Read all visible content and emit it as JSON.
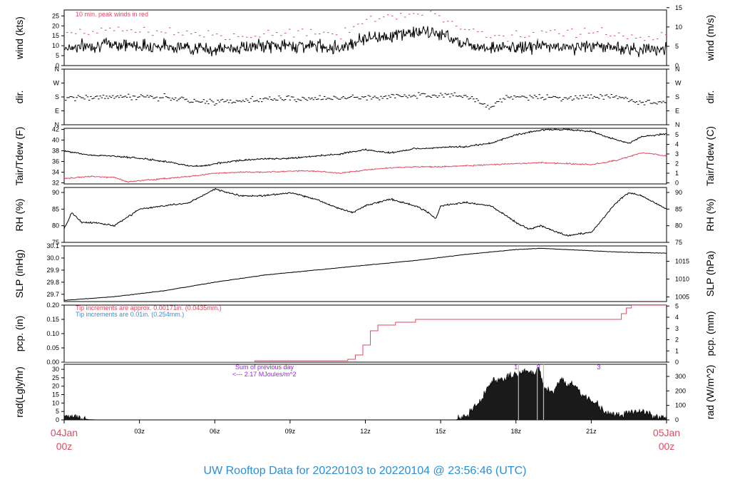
{
  "chart_data": {
    "type": "line",
    "title": "UW Rooftop Data for 20220103  to  20220104 @ 23:56:46  (UTC)",
    "colors": {
      "title": "#2b8fd6",
      "accent_red": "#e04a63",
      "blue_note": "#3a8fd0",
      "purple": "#a020f0",
      "line": "#000000",
      "frame": "#000000"
    },
    "x_axis": {
      "hours_range": [
        0,
        24
      ],
      "ticks": [
        {
          "hour": 0,
          "label": "04Jan",
          "label2": "00z",
          "end": true
        },
        {
          "hour": 3,
          "label": "03z"
        },
        {
          "hour": 6,
          "label": "06z"
        },
        {
          "hour": 9,
          "label": "09z"
        },
        {
          "hour": 12,
          "label": "12z"
        },
        {
          "hour": 15,
          "label": "15z"
        },
        {
          "hour": 18,
          "label": "18z"
        },
        {
          "hour": 21,
          "label": "21z"
        },
        {
          "hour": 24,
          "label": "05Jan",
          "label2": "00z",
          "end": true
        }
      ]
    },
    "panels": [
      {
        "id": "wind",
        "left_label": "wind (kts)",
        "right_label": "wind (m/s)",
        "ylim": [
          0,
          28
        ],
        "yticks": [
          0,
          5,
          10,
          15,
          20,
          25
        ],
        "right_ticks": [
          {
            "v": 0,
            "l": "0"
          },
          {
            "v": 9.72,
            "l": "5"
          },
          {
            "v": 19.44,
            "l": "10"
          },
          {
            "v": 29.16,
            "l": "15"
          }
        ],
        "annotations": [
          {
            "text": "10 min. peak winds in red",
            "color": "#e04a63",
            "pos": "top-left"
          }
        ],
        "series": [
          {
            "color": "#000000",
            "style": "line",
            "hours": [
              0,
              1,
              2,
              3,
              4,
              5,
              6,
              7,
              8,
              9,
              10,
              11,
              12,
              13,
              14,
              15,
              16,
              17,
              18,
              19,
              20,
              21,
              22,
              23,
              24
            ],
            "values": [
              9,
              10,
              11,
              10,
              10,
              9,
              8,
              9,
              10,
              10,
              10,
              9,
              14,
              15,
              17,
              16,
              11,
              9,
              9,
              10,
              9,
              10,
              9,
              8,
              9
            ]
          },
          {
            "name": "10 min. peak winds",
            "color": "#e04a63",
            "style": "dash",
            "hours": [
              0,
              1,
              2,
              3,
              4,
              5,
              6,
              7,
              8,
              9,
              10,
              11,
              12,
              13,
              14,
              15,
              16,
              17,
              18,
              19,
              20,
              21,
              22,
              23,
              24
            ],
            "values": [
              16,
              17,
              18,
              17,
              17,
              15,
              14,
              15,
              16,
              16,
              17,
              16,
              23,
              25,
              27,
              25,
              18,
              15,
              15,
              17,
              15,
              17,
              16,
              14,
              15
            ]
          }
        ]
      },
      {
        "id": "dir",
        "left_label": "dir.",
        "right_label": "dir.",
        "ylim": [
          0,
          360
        ],
        "yticks_labeled": [
          {
            "v": 0,
            "l": "N"
          },
          {
            "v": 90,
            "l": "E"
          },
          {
            "v": 180,
            "l": "S"
          },
          {
            "v": 270,
            "l": "W"
          },
          {
            "v": 360,
            "l": "N"
          }
        ],
        "right_ticks": [
          {
            "v": 0,
            "l": "N"
          },
          {
            "v": 90,
            "l": "E"
          },
          {
            "v": 180,
            "l": "S"
          },
          {
            "v": 270,
            "l": "W"
          },
          {
            "v": 360,
            "l": "N"
          }
        ],
        "series": [
          {
            "color": "#000000",
            "style": "scatter",
            "hours": [
              0,
              2,
              4,
              5.5,
              8,
              10,
              12,
              14,
              15,
              16,
              16.9,
              17.5,
              18,
              20,
              22,
              23,
              24
            ],
            "values": [
              170,
              185,
              175,
              145,
              165,
              170,
              175,
              190,
              200,
              185,
              110,
              175,
              180,
              175,
              185,
              140,
              150
            ]
          }
        ]
      },
      {
        "id": "temp",
        "left_label": "Tair/Tdew (F)",
        "right_label": "Tair/Tdew (C)",
        "ylim": [
          31.8,
          42.2
        ],
        "yticks": [
          32,
          34,
          36,
          38,
          40,
          42
        ],
        "right_ticks": [
          {
            "v": 32,
            "l": "0"
          },
          {
            "v": 33.8,
            "l": "1"
          },
          {
            "v": 35.6,
            "l": "2"
          },
          {
            "v": 37.4,
            "l": "3"
          },
          {
            "v": 39.2,
            "l": "4"
          },
          {
            "v": 41,
            "l": "5"
          }
        ],
        "series": [
          {
            "name": "Tair",
            "color": "#000000",
            "style": "line",
            "hours": [
              0,
              1,
              2,
              3,
              4,
              5,
              5.5,
              6,
              7,
              8,
              9,
              10,
              11,
              12,
              13,
              14,
              15,
              16,
              17,
              18,
              19,
              20,
              21,
              22,
              22.5,
              23,
              24
            ],
            "values": [
              38,
              37.2,
              37,
              36.6,
              36,
              35.2,
              35.1,
              35.6,
              36.2,
              36.5,
              36.6,
              37,
              37.4,
              38.2,
              37.6,
              38.4,
              38.6,
              38.8,
              39.4,
              41,
              41.9,
              42,
              41.6,
              40,
              39.4,
              40.6,
              41.2
            ]
          },
          {
            "name": "Tdew",
            "color": "#e04a63",
            "style": "line",
            "hours": [
              0,
              1,
              2,
              2.5,
              3,
              4,
              5,
              6,
              7,
              8,
              9,
              10,
              11,
              12,
              13,
              14,
              15,
              16,
              17,
              18,
              19,
              20,
              21,
              22,
              23,
              23.5,
              24
            ],
            "values": [
              32.8,
              33.2,
              33,
              32.2,
              32.4,
              32.8,
              33.2,
              33.8,
              34,
              34,
              34.2,
              34.2,
              33.8,
              34.4,
              34.8,
              35,
              35,
              35.2,
              35.4,
              35.6,
              35.8,
              35.6,
              35.4,
              36.2,
              37.6,
              37.4,
              37
            ]
          }
        ]
      },
      {
        "id": "rh",
        "left_label": "RH (%)",
        "right_label": "RH (%)",
        "ylim": [
          75,
          91.5
        ],
        "yticks": [
          75,
          80,
          85,
          90
        ],
        "right_ticks": [
          {
            "v": 75,
            "l": "75"
          },
          {
            "v": 80,
            "l": "80"
          },
          {
            "v": 85,
            "l": "85"
          },
          {
            "v": 90,
            "l": "90"
          }
        ],
        "series": [
          {
            "color": "#000000",
            "style": "line",
            "hours": [
              0,
              0.3,
              0.7,
              1.2,
              2,
              3,
              4,
              5,
              5.5,
              6,
              7,
              8,
              9,
              10,
              11,
              11.5,
              12,
              13,
              14,
              14.5,
              14.8,
              15,
              16,
              17,
              18,
              18.5,
              19,
              20,
              21,
              22,
              22.5,
              23,
              24
            ],
            "values": [
              79,
              84,
              81,
              81,
              80,
              85,
              86,
              87,
              89,
              91,
              89,
              89,
              90,
              88,
              85,
              84,
              86,
              88,
              86,
              84,
              82,
              86,
              87,
              86,
              81,
              79,
              80,
              77,
              78,
              87,
              90,
              89,
              85
            ]
          }
        ]
      },
      {
        "id": "slp",
        "left_label": "SLP (inHg)",
        "right_label": "SLP (hPa)",
        "ylim": [
          29.64,
          30.1
        ],
        "yticks": [
          29.7,
          29.8,
          29.9,
          30.0,
          30.1
        ],
        "right_ticks": [
          {
            "v": 29.678,
            "l": "1005"
          },
          {
            "v": 29.826,
            "l": "1010"
          },
          {
            "v": 29.973,
            "l": "1015"
          }
        ],
        "series": [
          {
            "color": "#000000",
            "style": "line",
            "hours": [
              0,
              2,
              4,
              6,
              8,
              10,
              12,
              14,
              16,
              18,
              19,
              20,
              22,
              24
            ],
            "values": [
              29.65,
              29.68,
              29.73,
              29.8,
              29.86,
              29.9,
              29.94,
              29.98,
              30.03,
              30.07,
              30.08,
              30.07,
              30.05,
              30.04
            ]
          }
        ]
      },
      {
        "id": "pcp",
        "left_label": "pcp. (in)",
        "right_label": "pcp. (mm)",
        "ylim": [
          0,
          0.2
        ],
        "yticks": [
          0.0,
          0.05,
          0.1,
          0.15,
          0.2
        ],
        "right_ticks": [
          {
            "v": 0,
            "l": "0"
          },
          {
            "v": 0.03937,
            "l": "1"
          },
          {
            "v": 0.07874,
            "l": "2"
          },
          {
            "v": 0.11811,
            "l": "3"
          },
          {
            "v": 0.15748,
            "l": "4"
          },
          {
            "v": 0.19685,
            "l": "5"
          }
        ],
        "annotations": [
          {
            "text": "Tip increments are approx. 0.00171in. (0.0435mm.)",
            "color": "#e04a63",
            "pos": "top-left"
          },
          {
            "text": "Tip increments are 0.01in. (0.254mm.)",
            "color": "#3a8fd0",
            "pos": "top-left-2"
          }
        ],
        "series": [
          {
            "color": "#e04a63",
            "style": "step",
            "hours": [
              0,
              7.6,
              11.3,
              11.6,
              11.9,
              12.2,
              12.5,
              13.2,
              14,
              22.2,
              22.4,
              22.6,
              24
            ],
            "values": [
              0,
              0.005,
              0.01,
              0.025,
              0.06,
              0.11,
              0.13,
              0.14,
              0.15,
              0.17,
              0.19,
              0.2,
              0.2
            ]
          }
        ]
      },
      {
        "id": "rad",
        "left_label": "rad(Lgly/hr)",
        "right_label": "rad (W/m^2)",
        "ylim": [
          0,
          33
        ],
        "yticks": [
          0,
          5,
          10,
          15,
          20,
          25,
          30
        ],
        "right_ticks": [
          {
            "v": 0,
            "l": "0"
          },
          {
            "v": 8.6,
            "l": "100"
          },
          {
            "v": 17.2,
            "l": "200"
          },
          {
            "v": 25.8,
            "l": "300"
          }
        ],
        "annotations": [
          {
            "text": "Sum of previous day",
            "color": "#a020f0"
          },
          {
            "text": "<--- 2.17 MJoules/m^2",
            "color": "#a020f0"
          },
          {
            "text": "1",
            "color": "#a020f0",
            "hour": 18
          },
          {
            "text": "2",
            "color": "#a020f0",
            "hour": 18.9
          },
          {
            "text": "3",
            "color": "#a020f0",
            "hour": 21.3
          }
        ],
        "series": [
          {
            "color": "#000000",
            "style": "area",
            "hours": [
              0,
              0.1,
              0.3,
              0.6,
              1,
              1.5,
              15.6,
              16,
              16.5,
              17,
              17.5,
              17.8,
              18,
              18.3,
              18.8,
              18.9,
              19.1,
              19.5,
              19.8,
              20,
              20.3,
              20.6,
              21,
              21.5,
              22,
              22.5,
              23,
              23.5,
              24
            ],
            "values": [
              2,
              3,
              3,
              1,
              0.2,
              0,
              0,
              2,
              9,
              22,
              25,
              26,
              27,
              29,
              28,
              33,
              19,
              17,
              25,
              20,
              22,
              15,
              12,
              5,
              3,
              4,
              5,
              2,
              1.5
            ]
          }
        ]
      }
    ]
  }
}
